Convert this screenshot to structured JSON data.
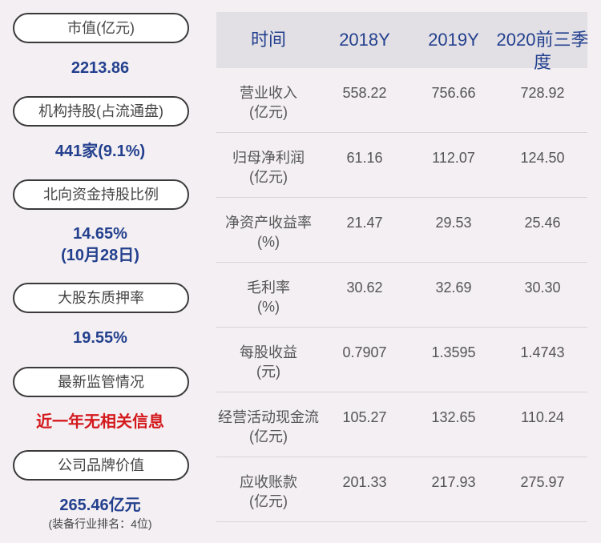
{
  "left": [
    {
      "label": "市值(亿元)",
      "value": [
        "2213.86"
      ]
    },
    {
      "label": "机构持股(占流通盘)",
      "value": [
        "441家(9.1%)"
      ]
    },
    {
      "label": "北向资金持股比例",
      "value": [
        "14.65%",
        "(10月28日)"
      ]
    },
    {
      "label": "大股东质押率",
      "value": [
        "19.55%"
      ]
    },
    {
      "label": "最新监管情况",
      "value": [
        "近一年无相关信息"
      ],
      "alert": true
    },
    {
      "label": "公司品牌价值",
      "value": [
        "265.46亿元"
      ],
      "note": "(装备行业排名：4位)"
    }
  ],
  "table": {
    "header": [
      "时间",
      "2018Y",
      "2019Y",
      "2020前三季度"
    ],
    "rows": [
      {
        "label": [
          "营业收入",
          "(亿元)"
        ],
        "values": [
          "558.22",
          "756.66",
          "728.92"
        ]
      },
      {
        "label": [
          "归母净利润",
          "(亿元)"
        ],
        "values": [
          "61.16",
          "112.07",
          "124.50"
        ]
      },
      {
        "label": [
          "净资产收益率",
          "(%)"
        ],
        "values": [
          "21.47",
          "29.53",
          "25.46"
        ]
      },
      {
        "label": [
          "毛利率",
          "(%)"
        ],
        "values": [
          "30.62",
          "32.69",
          "30.30"
        ]
      },
      {
        "label": [
          "每股收益",
          "(元)"
        ],
        "values": [
          "0.7907",
          "1.3595",
          "1.4743"
        ]
      },
      {
        "label": [
          "经营活动现金流",
          "(亿元)"
        ],
        "values": [
          "105.27",
          "132.65",
          "110.24"
        ]
      },
      {
        "label": [
          "应收账款",
          "(亿元)"
        ],
        "values": [
          "201.33",
          "217.93",
          "275.97"
        ]
      }
    ]
  }
}
